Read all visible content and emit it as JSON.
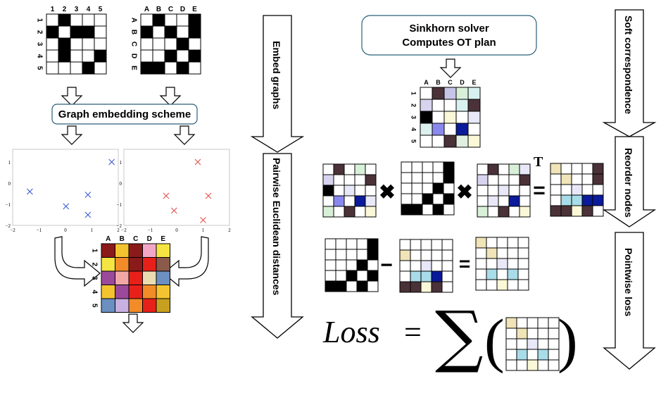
{
  "graph_a": {
    "col_labels": [
      "1",
      "2",
      "3",
      "4",
      "5"
    ],
    "row_labels": [
      "1",
      "2",
      "3",
      "4",
      "5"
    ],
    "cells": [
      [
        0,
        1,
        0,
        0,
        0
      ],
      [
        1,
        0,
        1,
        1,
        0
      ],
      [
        0,
        1,
        0,
        0,
        0
      ],
      [
        0,
        1,
        0,
        0,
        1
      ],
      [
        0,
        0,
        0,
        1,
        0
      ]
    ]
  },
  "graph_b": {
    "col_labels": [
      "A",
      "B",
      "C",
      "D",
      "E"
    ],
    "row_labels": [
      "A",
      "B",
      "C",
      "D",
      "E"
    ],
    "cells": [
      [
        0,
        1,
        0,
        0,
        1
      ],
      [
        1,
        0,
        1,
        0,
        1
      ],
      [
        0,
        0,
        0,
        1,
        0
      ],
      [
        0,
        0,
        1,
        0,
        1
      ],
      [
        1,
        1,
        0,
        1,
        0
      ]
    ]
  },
  "embedding_box": "Graph embedding scheme",
  "solver_box": {
    "line1": "Sinkhorn solver",
    "line2": "Computes OT plan"
  },
  "side_arrows": {
    "embed": "Embed graphs",
    "pairwise": "Pairwise Euclidean distances",
    "soft": "Soft correspondence",
    "reorder": "Reorder nodes",
    "pointwise": "Pointwise loss"
  },
  "scatter_left": {
    "x_ticks": [
      "−2",
      "−1",
      "0",
      "1",
      "2"
    ],
    "y_ticks": [
      "1",
      "0",
      "−1",
      "−2"
    ],
    "marker_color": "#3b5bd6",
    "points": [
      [
        -1.35,
        -0.4
      ],
      [
        0.02,
        -1.1
      ],
      [
        0.85,
        -0.55
      ],
      [
        0.85,
        -1.5
      ],
      [
        1.75,
        1.0
      ]
    ]
  },
  "scatter_right": {
    "x_ticks": [
      "−2",
      "−1",
      "0",
      "1",
      "2"
    ],
    "y_ticks": [
      "1",
      "0",
      "−1",
      "−2"
    ],
    "marker_color": "#e0504a",
    "points": [
      [
        0.8,
        1.0
      ],
      [
        -0.4,
        -0.6
      ],
      [
        -0.1,
        -1.3
      ],
      [
        1.2,
        -0.6
      ],
      [
        1.0,
        -1.75
      ]
    ]
  },
  "distance_matrix": {
    "col_labels": [
      "A",
      "B",
      "C",
      "D",
      "E"
    ],
    "row_labels": [
      "1",
      "2",
      "3",
      "4",
      "5"
    ],
    "colors": [
      [
        "#8b1a1a",
        "#f4c430",
        "#8b1a1a",
        "#f2a7c8",
        "#f4e542"
      ],
      [
        "#f4e542",
        "#f28c28",
        "#8b1a1a",
        "#e8201a",
        "#8a5a4a"
      ],
      [
        "#9b4a9b",
        "#f2a7a7",
        "#e8201a",
        "#e8dcb0",
        "#6a8fc0"
      ],
      [
        "#f4c430",
        "#9b4a9b",
        "#e8201a",
        "#f28c28",
        "#f4c430"
      ],
      [
        "#6a8fc0",
        "#c8b0e0",
        "#f28c28",
        "#e8201a",
        "#c8a020"
      ]
    ]
  },
  "ot_plan": {
    "col_labels": [
      "A",
      "B",
      "C",
      "D",
      "E"
    ],
    "row_labels": [
      "1",
      "2",
      "3",
      "4",
      "5"
    ],
    "colors": [
      [
        "#ffffff",
        "#4a3238",
        "#c8c4e8",
        "#d8f0d8",
        "#d8f0f0"
      ],
      [
        "#d8d4f0",
        "#ffffff",
        "#ffffff",
        "#d8f0f0",
        "#4a3238"
      ],
      [
        "#000000",
        "#ffffff",
        "#fbf8d8",
        "#ffffff",
        "#e8e8f8"
      ],
      [
        "#dcf0f0",
        "#8888ee",
        "#ffffff",
        "#0a1a9a",
        "#ffffff"
      ],
      [
        "#ffffff",
        "#ffffff",
        "#4a3238",
        "#e0f0e0",
        "#fbf8d8"
      ]
    ]
  },
  "ot_plan_row2": {
    "colors": [
      [
        "#ffffff",
        "#4a3238",
        "#ffffff",
        "#d8f0d8",
        "#ffffff"
      ],
      [
        "#d8d4f0",
        "#ffffff",
        "#ffffff",
        "#ffffff",
        "#4a3238"
      ],
      [
        "#000000",
        "#ffffff",
        "#e8e8f8",
        "#ffffff",
        "#ffffff"
      ],
      [
        "#ffffff",
        "#8888ee",
        "#ffffff",
        "#0a1a9a",
        "#e8e8f8"
      ],
      [
        "#d8f0d8",
        "#ffffff",
        "#4a3238",
        "#ffffff",
        "#fbf8d8"
      ]
    ]
  },
  "ot_plan_T": {
    "colors": [
      [
        "#ffffff",
        "#4a3238",
        "#ffffff",
        "#d8f0d8",
        "#e8e8f8"
      ],
      [
        "#d8d4f0",
        "#ffffff",
        "#ffffff",
        "#ffffff",
        "#4a3238"
      ],
      [
        "#ffffff",
        "#ffffff",
        "#e8e8f8",
        "#ffffff",
        "#ffffff"
      ],
      [
        "#ffffff",
        "#e8e8f8",
        "#ffffff",
        "#0a1a9a",
        "#ffffff"
      ],
      [
        "#d8f0d8",
        "#ffffff",
        "#4a3238",
        "#ffffff",
        "#fbf8d8"
      ]
    ]
  },
  "reordered": {
    "colors": [
      [
        "#f0e4b8",
        "#ffffff",
        "#ffffff",
        "#ffffff",
        "#4a3238"
      ],
      [
        "#ffffff",
        "#f0e4b8",
        "#ffffff",
        "#ffffff",
        "#4a3238"
      ],
      [
        "#ffffff",
        "#ffffff",
        "#e8e8f8",
        "#ffffff",
        "#ffffff"
      ],
      [
        "#ffffff",
        "#a8dce8",
        "#a8dce8",
        "#0a1a9a",
        "#0a1a9a"
      ],
      [
        "#4a3238",
        "#4a3238",
        "#fbf8d8",
        "#4a3238",
        "#ffffff"
      ]
    ]
  },
  "reordered_small": {
    "colors": [
      [
        "#ffffff",
        "#ffffff",
        "#ffffff",
        "#ffffff",
        "#ffffff"
      ],
      [
        "#f0e4b8",
        "#ffffff",
        "#ffffff",
        "#ffffff",
        "#ffffff"
      ],
      [
        "#ffffff",
        "#ffffff",
        "#e8e8f8",
        "#ffffff",
        "#ffffff"
      ],
      [
        "#ffffff",
        "#a8dce8",
        "#a8dce8",
        "#0a1a9a",
        "#ffffff"
      ],
      [
        "#4a3238",
        "#4a3238",
        "#fbf8d8",
        "#4a3238",
        "#ffffff"
      ]
    ]
  },
  "difference": {
    "colors": [
      [
        "#f0e4b8",
        "#ffffff",
        "#ffffff",
        "#ffffff",
        "#ffffff"
      ],
      [
        "#ffffff",
        "#f0e4b8",
        "#ffffff",
        "#ffffff",
        "#ffffff"
      ],
      [
        "#ffffff",
        "#ffffff",
        "#e8e8f8",
        "#ffffff",
        "#ffffff"
      ],
      [
        "#ffffff",
        "#a8dce8",
        "#ffffff",
        "#a8dce8",
        "#ffffff"
      ],
      [
        "#ffffff",
        "#ffffff",
        "#fbf8d8",
        "#ffffff",
        "#ffffff"
      ]
    ]
  },
  "graph_b_small": {
    "cells": [
      [
        0,
        0,
        0,
        0,
        1
      ],
      [
        0,
        0,
        0,
        0,
        1
      ],
      [
        0,
        0,
        0,
        1,
        0
      ],
      [
        0,
        0,
        1,
        0,
        1
      ],
      [
        1,
        1,
        0,
        1,
        0
      ]
    ]
  },
  "equation": {
    "loss": "Loss",
    "equals": "=",
    "sigma": "∑",
    "lparen": "(",
    "rparen": ")",
    "times": "✖",
    "minus": "−",
    "eq_sign": "=",
    "transpose": "T"
  }
}
